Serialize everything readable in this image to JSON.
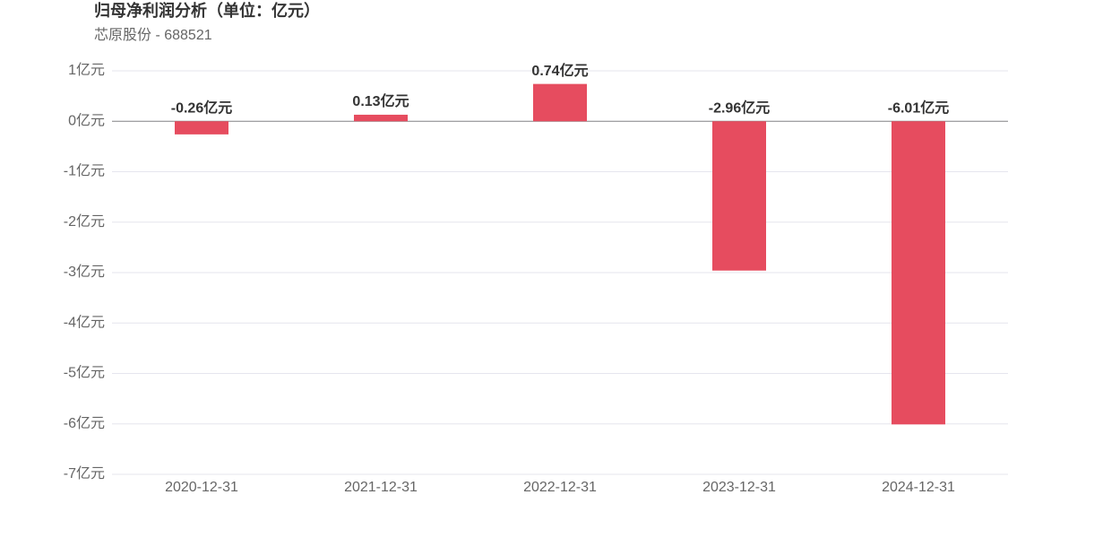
{
  "chart_data": {
    "type": "bar",
    "title": "归母净利润分析（单位：亿元）",
    "subtitle": "芯原股份 - 688521",
    "categories": [
      "2020-12-31",
      "2021-12-31",
      "2022-12-31",
      "2023-12-31",
      "2024-12-31"
    ],
    "values": [
      -0.26,
      0.13,
      0.74,
      -2.96,
      -6.01
    ],
    "value_labels": [
      "-0.26亿元",
      "0.13亿元",
      "0.74亿元",
      "-2.96亿元",
      "-6.01亿元"
    ],
    "color": "#e64c5f",
    "ylim": [
      -7,
      1
    ],
    "yticks": [
      {
        "value": 1,
        "label": "1亿元"
      },
      {
        "value": 0,
        "label": "0亿元"
      },
      {
        "value": -1,
        "label": "-1亿元"
      },
      {
        "value": -2,
        "label": "-2亿元"
      },
      {
        "value": -3,
        "label": "-3亿元"
      },
      {
        "value": -4,
        "label": "-4亿元"
      },
      {
        "value": -5,
        "label": "-5亿元"
      },
      {
        "value": -6,
        "label": "-6亿元"
      },
      {
        "value": -7,
        "label": "-7亿元"
      }
    ],
    "grid": true
  }
}
